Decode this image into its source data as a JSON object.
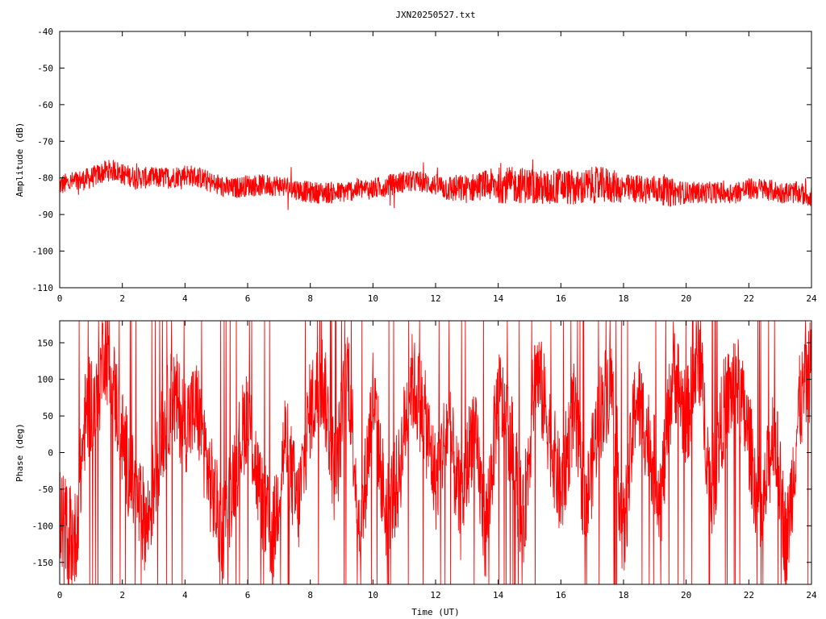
{
  "title": "JXN20250527.txt",
  "chart_data": [
    {
      "type": "line",
      "name": "amplitude-panel",
      "ylabel": "Amplitude (dB)",
      "xlabel": "",
      "xlim": [
        0,
        24
      ],
      "ylim": [
        -110,
        -40
      ],
      "x_ticks": [
        0,
        2,
        4,
        6,
        8,
        10,
        12,
        14,
        16,
        18,
        20,
        22,
        24
      ],
      "y_ticks": [
        -110,
        -100,
        -90,
        -80,
        -70,
        -60,
        -50,
        -40
      ],
      "grid": false,
      "line_color": "#ff0000",
      "series": [
        {
          "x": [
            0,
            0.5,
            1.0,
            1.5,
            1.8,
            2.0,
            2.5,
            3.0,
            3.5,
            4.0,
            4.5,
            5.0,
            5.5,
            6.0,
            6.5,
            7.0,
            7.5,
            8.0,
            8.5,
            9.0,
            9.5,
            10.0,
            10.5,
            11.0,
            11.5,
            12.0,
            12.5,
            13.0,
            13.5,
            14.0,
            14.5,
            15.0,
            15.5,
            16.0,
            16.5,
            17.0,
            17.5,
            18.0,
            18.5,
            19.0,
            19.5,
            20.0,
            20.5,
            21.0,
            21.5,
            22.0,
            22.5,
            23.0,
            23.5,
            24.0
          ],
          "y": [
            -82,
            -81,
            -80,
            -78,
            -78,
            -79,
            -80,
            -80,
            -80,
            -79,
            -80,
            -82,
            -83,
            -82,
            -82,
            -82,
            -83,
            -84,
            -84,
            -84,
            -83,
            -83,
            -82,
            -81,
            -81,
            -82,
            -83,
            -83,
            -82,
            -82,
            -82,
            -82,
            -83,
            -82,
            -83,
            -82,
            -82,
            -83,
            -83,
            -83,
            -84,
            -84,
            -84,
            -84,
            -84,
            -83,
            -83,
            -84,
            -84,
            -85
          ],
          "spread": [
            3,
            3,
            3,
            3,
            3,
            3,
            3,
            3,
            3,
            3,
            3,
            3,
            3,
            3,
            3,
            3,
            3,
            3,
            3,
            3,
            3,
            3,
            3,
            3,
            3,
            3,
            4,
            4,
            4,
            5,
            5,
            5,
            5,
            5,
            5,
            5,
            5,
            4,
            4,
            4,
            4,
            3,
            3,
            3,
            3,
            3,
            3,
            3,
            3,
            3
          ]
        }
      ]
    },
    {
      "type": "line",
      "name": "phase-panel",
      "ylabel": "Phase (deg)",
      "xlabel": "Time (UT)",
      "xlim": [
        0,
        24
      ],
      "ylim": [
        -180,
        180
      ],
      "x_ticks": [
        0,
        2,
        4,
        6,
        8,
        10,
        12,
        14,
        16,
        18,
        20,
        22,
        24
      ],
      "y_ticks": [
        -150,
        -100,
        -50,
        0,
        50,
        100,
        150
      ],
      "grid": false,
      "line_color": "#ff0000",
      "series": [
        {
          "x": [
            0,
            0.5,
            0.8,
            1.0,
            1.2,
            1.4,
            1.6,
            2.0,
            2.4,
            2.8,
            3.2,
            3.6,
            4.0,
            4.4,
            4.8,
            5.2,
            5.6,
            6.0,
            6.4,
            6.8,
            7.2,
            7.6,
            8.0,
            8.4,
            8.8,
            9.2,
            9.6,
            10.0,
            10.4,
            10.8,
            11.2,
            11.6,
            12.0,
            12.4,
            12.8,
            13.2,
            13.6,
            14.0,
            14.4,
            14.8,
            15.2,
            15.6,
            16.0,
            16.4,
            16.8,
            17.2,
            17.6,
            18.0,
            18.4,
            18.8,
            19.2,
            19.6,
            20.0,
            20.4,
            20.8,
            21.2,
            21.6,
            22.0,
            22.4,
            22.8,
            23.2,
            23.6,
            24.0
          ],
          "y": [
            -90,
            -120,
            40,
            70,
            60,
            150,
            120,
            20,
            -60,
            -100,
            10,
            80,
            40,
            60,
            -40,
            -110,
            -20,
            60,
            -60,
            -120,
            20,
            -80,
            60,
            100,
            -40,
            120,
            -120,
            80,
            -80,
            -40,
            100,
            60,
            -40,
            40,
            -80,
            40,
            -110,
            80,
            20,
            -100,
            120,
            40,
            -60,
            60,
            -80,
            50,
            100,
            -120,
            80,
            20,
            -60,
            120,
            40,
            140,
            -60,
            60,
            100,
            20,
            -100,
            40,
            -130,
            60,
            120
          ],
          "noise": 70
        }
      ]
    }
  ]
}
